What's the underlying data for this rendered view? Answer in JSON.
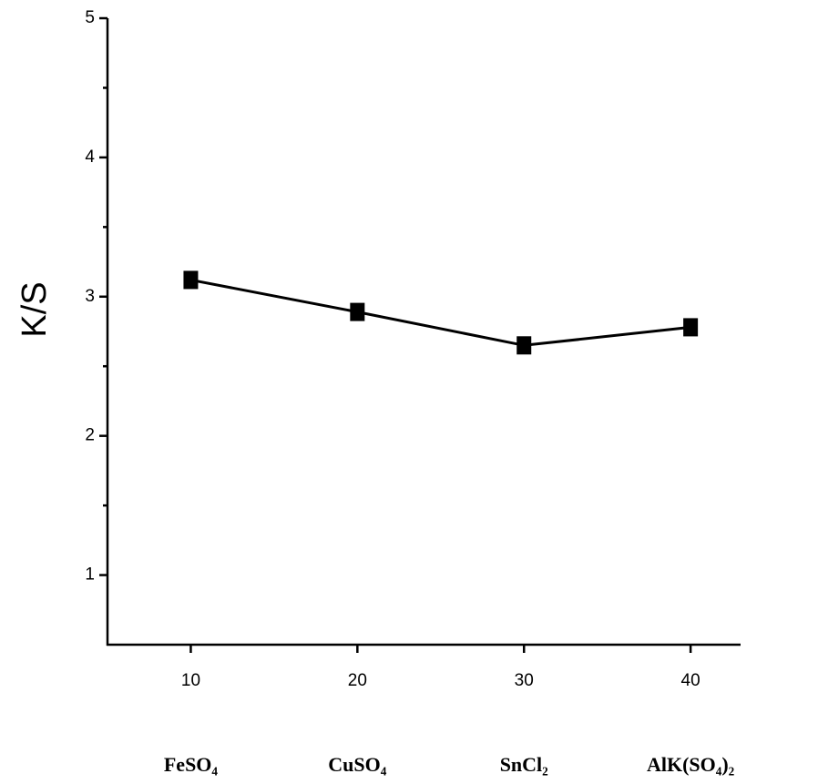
{
  "chart_data": {
    "type": "line",
    "y_label": "K/S",
    "x": [
      10,
      20,
      30,
      40
    ],
    "categories": [
      "FeSO₄",
      "CuSO₄",
      "SnCl₂",
      "AlK(SO₄)₂"
    ],
    "series": [
      {
        "name": "K/S",
        "color": "#000000",
        "values": [
          3.12,
          2.89,
          2.65,
          2.78
        ]
      }
    ],
    "xlim": [
      5,
      43
    ],
    "xticks": [
      10,
      20,
      30,
      40
    ],
    "ylim": [
      0.5,
      5
    ],
    "yticks": [
      1,
      2,
      3,
      4,
      5
    ],
    "yminorticks": [
      1.5,
      2.5,
      3.5,
      4.5
    ]
  }
}
